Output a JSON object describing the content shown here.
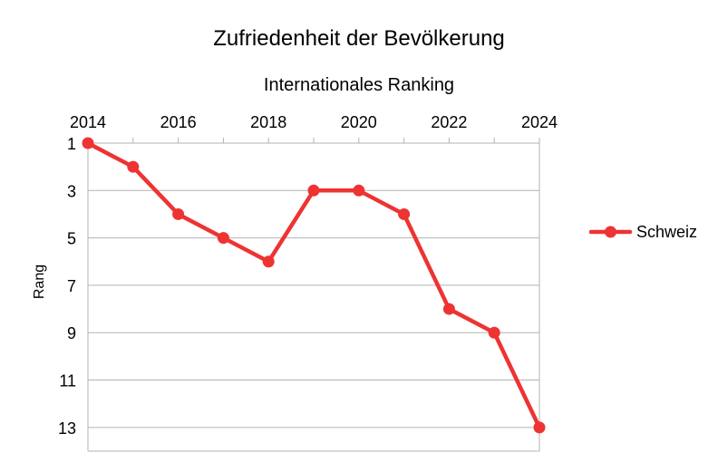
{
  "chart_data": {
    "type": "line",
    "title": "Zufriedenheit der Bevölkerung",
    "subtitle": "Internationales Ranking",
    "xlabel": "",
    "ylabel": "Rang",
    "x": [
      2014,
      2015,
      2016,
      2017,
      2018,
      2019,
      2020,
      2021,
      2022,
      2023,
      2024
    ],
    "x_ticks": [
      "2014",
      "2016",
      "2018",
      "2020",
      "2022",
      "2024"
    ],
    "y_ticks": [
      "1",
      "3",
      "5",
      "7",
      "9",
      "11",
      "13"
    ],
    "xlim": [
      2014,
      2024
    ],
    "ylim": [
      1,
      14
    ],
    "y_inverted": true,
    "x_axis_position": "top",
    "grid": "horizontal",
    "legend_position": "right",
    "series": [
      {
        "name": "Schweiz",
        "color": "#ee3333",
        "values": [
          1,
          2,
          4,
          5,
          6,
          3,
          3,
          4,
          8,
          9,
          13
        ]
      }
    ]
  }
}
